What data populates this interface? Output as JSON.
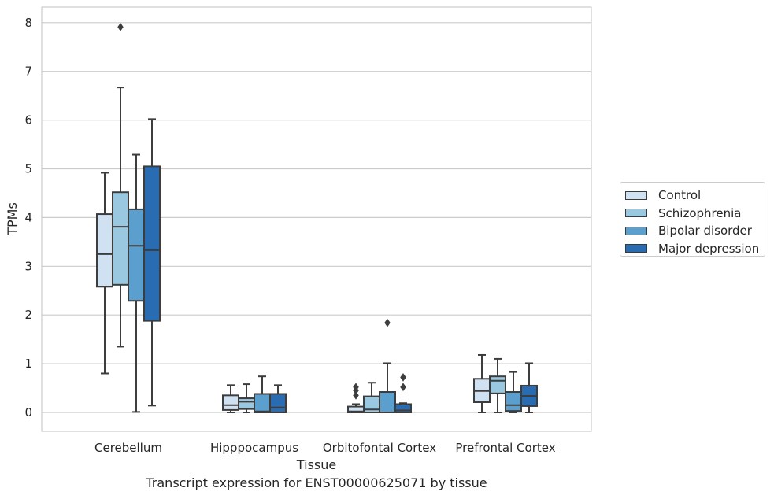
{
  "chart_data": {
    "type": "box",
    "xlabel": "Tissue",
    "ylabel": "TPMs",
    "caption": "Transcript expression for ENST00000625071 by tissue",
    "ylim": [
      -0.4,
      8.3
    ],
    "yticks": [
      0,
      1,
      2,
      3,
      4,
      5,
      6,
      7,
      8
    ],
    "grid": "horizontal",
    "legend_position": "right",
    "categories": [
      "Cerebellum",
      "Hipppocampus",
      "Orbitofontal Cortex",
      "Prefrontal Cortex"
    ],
    "series": [
      {
        "name": "Control",
        "color": "#d0e2f2",
        "boxes": [
          {
            "whislo": 0.8,
            "q1": 2.58,
            "med": 3.25,
            "q3": 4.07,
            "whishi": 4.92,
            "fliers": []
          },
          {
            "whislo": 0.0,
            "q1": 0.05,
            "med": 0.15,
            "q3": 0.35,
            "whishi": 0.56,
            "fliers": []
          },
          {
            "whislo": 0.0,
            "q1": 0.0,
            "med": 0.02,
            "q3": 0.12,
            "whishi": 0.17,
            "fliers": [
              0.35,
              0.45,
              0.52
            ]
          },
          {
            "whislo": 0.0,
            "q1": 0.21,
            "med": 0.44,
            "q3": 0.69,
            "whishi": 1.18,
            "fliers": []
          }
        ]
      },
      {
        "name": "Schizophrenia",
        "color": "#9ac8e0",
        "boxes": [
          {
            "whislo": 1.35,
            "q1": 2.62,
            "med": 3.81,
            "q3": 4.52,
            "whishi": 6.67,
            "fliers": [
              7.91
            ]
          },
          {
            "whislo": 0.0,
            "q1": 0.07,
            "med": 0.22,
            "q3": 0.29,
            "whishi": 0.58,
            "fliers": []
          },
          {
            "whislo": 0.0,
            "q1": 0.0,
            "med": 0.06,
            "q3": 0.33,
            "whishi": 0.61,
            "fliers": []
          },
          {
            "whislo": 0.0,
            "q1": 0.39,
            "med": 0.65,
            "q3": 0.74,
            "whishi": 1.1,
            "fliers": []
          }
        ]
      },
      {
        "name": "Bipolar disorder",
        "color": "#5a9fcd",
        "boxes": [
          {
            "whislo": 0.01,
            "q1": 2.29,
            "med": 3.42,
            "q3": 4.17,
            "whishi": 5.29,
            "fliers": []
          },
          {
            "whislo": 0.0,
            "q1": 0.0,
            "med": 0.02,
            "q3": 0.38,
            "whishi": 0.74,
            "fliers": []
          },
          {
            "whislo": 0.0,
            "q1": 0.0,
            "med": 0.0,
            "q3": 0.42,
            "whishi": 1.01,
            "fliers": [
              1.84
            ]
          },
          {
            "whislo": 0.0,
            "q1": 0.03,
            "med": 0.15,
            "q3": 0.42,
            "whishi": 0.83,
            "fliers": []
          }
        ]
      },
      {
        "name": "Major depression",
        "color": "#2a6cb1",
        "boxes": [
          {
            "whislo": 0.14,
            "q1": 1.88,
            "med": 3.33,
            "q3": 5.05,
            "whishi": 6.02,
            "fliers": []
          },
          {
            "whislo": 0.0,
            "q1": 0.0,
            "med": 0.1,
            "q3": 0.38,
            "whishi": 0.56,
            "fliers": []
          },
          {
            "whislo": 0.0,
            "q1": 0.0,
            "med": 0.04,
            "q3": 0.17,
            "whishi": 0.19,
            "fliers": [
              0.52,
              0.72
            ]
          },
          {
            "whislo": 0.0,
            "q1": 0.13,
            "med": 0.34,
            "q3": 0.55,
            "whishi": 1.01,
            "fliers": []
          }
        ]
      }
    ]
  }
}
